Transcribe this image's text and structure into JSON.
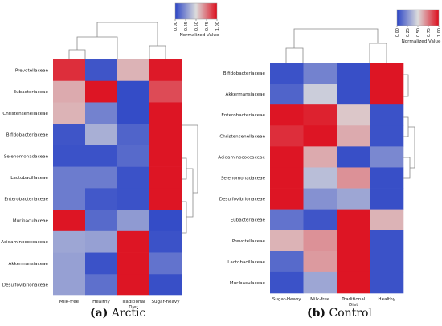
{
  "colors": {
    "low": "#2d46c6",
    "mid": "#dcdcdc",
    "high": "#dd0d1c",
    "line": "#888888",
    "text": "#222222"
  },
  "chart_data": [
    {
      "type": "heatmap",
      "caption_label": "(a)",
      "caption_text": "Arctic",
      "colorbar_label": "Normalized Value",
      "colorbar_ticks": [
        "0.00",
        "0.25",
        "0.50",
        "0.75",
        "1.00"
      ],
      "columns": [
        "Milk-free",
        "Healthy",
        "Traditional Diet",
        "Sugar-heavy"
      ],
      "rows": [
        "Prevotellaceae",
        "Eubacteriaceae",
        "Christensenellaceae",
        "Bifidobacteriaceae",
        "Selenomonadaceae",
        "Lactobacillaceae",
        "Enterobacteriaceae",
        "Muribaculaceae",
        "Acidaminococcaceae",
        "Akkermansiaceae",
        "Desulfovibrionaceae"
      ],
      "values": [
        [
          0.92,
          0.05,
          0.6,
          0.97
        ],
        [
          0.62,
          0.98,
          0.02,
          0.85
        ],
        [
          0.6,
          0.2,
          0.02,
          0.98
        ],
        [
          0.05,
          0.35,
          0.1,
          0.98
        ],
        [
          0.04,
          0.04,
          0.12,
          0.98
        ],
        [
          0.18,
          0.18,
          0.04,
          0.98
        ],
        [
          0.18,
          0.06,
          0.04,
          0.98
        ],
        [
          0.98,
          0.12,
          0.28,
          0.02
        ],
        [
          0.32,
          0.3,
          0.98,
          0.04
        ],
        [
          0.3,
          0.04,
          0.98,
          0.15
        ],
        [
          0.3,
          0.14,
          0.98,
          0.03
        ]
      ],
      "vmin": 0,
      "vmax": 1
    },
    {
      "type": "heatmap",
      "caption_label": "(b)",
      "caption_text": "Control",
      "colorbar_label": "Normalized Value",
      "colorbar_ticks": [
        "0.00",
        "0.25",
        "0.50",
        "0.75",
        "1.00"
      ],
      "columns": [
        "Sugar-Heavy",
        "Milk-free",
        "Traditional Diet",
        "Healthy"
      ],
      "rows": [
        "Bifidobacteriaceae",
        "Akkermansiaceae",
        "Enterobacteriaceae",
        "Christensenellaceae",
        "Acidaminococcaceae",
        "Selenomonadaceae",
        "Desulfovibrionaceae",
        "Eubacteriaceae",
        "Prevotellaceae",
        "Lactobacillaceae",
        "Muribaculaceae"
      ],
      "values": [
        [
          0.04,
          0.2,
          0.03,
          0.98
        ],
        [
          0.1,
          0.45,
          0.03,
          0.98
        ],
        [
          0.98,
          0.95,
          0.55,
          0.04
        ],
        [
          0.92,
          0.98,
          0.62,
          0.04
        ],
        [
          0.98,
          0.62,
          0.03,
          0.22
        ],
        [
          0.98,
          0.4,
          0.68,
          0.03
        ],
        [
          0.98,
          0.25,
          0.32,
          0.03
        ],
        [
          0.15,
          0.05,
          0.98,
          0.6
        ],
        [
          0.6,
          0.68,
          0.98,
          0.04
        ],
        [
          0.12,
          0.66,
          0.98,
          0.04
        ],
        [
          0.04,
          0.32,
          0.98,
          0.04
        ]
      ],
      "vmin": 0,
      "vmax": 1
    }
  ]
}
